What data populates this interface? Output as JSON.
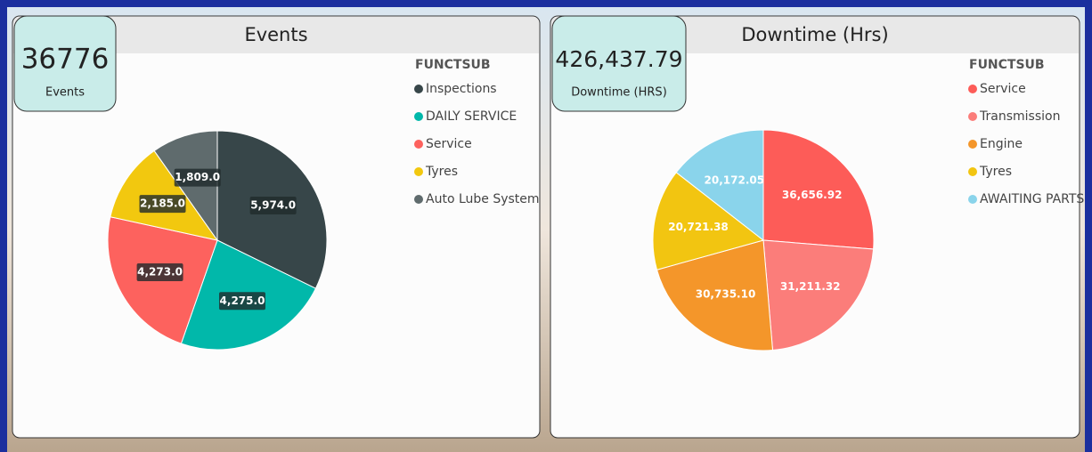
{
  "chart_data": [
    {
      "type": "pie",
      "title": "Events",
      "legend_title": "FUNCTSUB",
      "categories": [
        "Inspections",
        "DAILY SERVICE",
        "Service",
        "Tyres",
        "Auto Lube System"
      ],
      "values": [
        5974,
        4275,
        4273,
        2185,
        1809
      ],
      "value_labels": [
        "5,974.0",
        "4,275.0",
        "4,273.0",
        "2,185.0",
        "1,809.0"
      ],
      "colors": [
        "#374649",
        "#01b8aa",
        "#fd625e",
        "#f2c80f",
        "#5f6b6d"
      ]
    },
    {
      "type": "pie",
      "title": "Downtime (Hrs)",
      "legend_title": "FUNCTSUB",
      "categories": [
        "Service",
        "Transmission",
        "Engine",
        "Tyres",
        "AWAITING PARTS"
      ],
      "values": [
        36656.92,
        31211.32,
        30735.1,
        20721.38,
        20172.05
      ],
      "value_labels": [
        "36,656.92",
        "31,211.32",
        "30,735.10",
        "20,721.38",
        "20,172.05"
      ],
      "colors": [
        "#fd5c58",
        "#fb7d7a",
        "#f4962a",
        "#f2c511",
        "#8ad4eb"
      ]
    }
  ],
  "cards": [
    {
      "value": "36776",
      "label": "Events"
    },
    {
      "value": "426,437.79",
      "label": "Downtime (HRS)"
    }
  ]
}
